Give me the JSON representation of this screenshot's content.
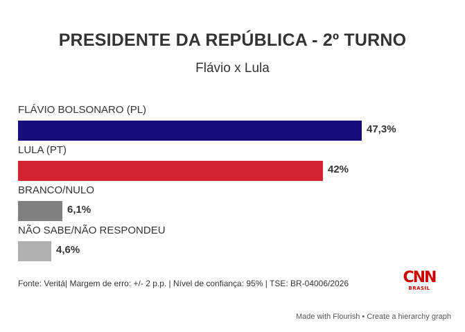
{
  "header": {
    "title": "PRESIDENTE DA REPÚBLICA - 2º TURNO",
    "subtitle": "Flávio x Lula"
  },
  "chart_data": {
    "type": "bar",
    "orientation": "horizontal",
    "title": "PRESIDENTE DA REPÚBLICA - 2º TURNO",
    "subtitle": "Flávio x Lula",
    "categories": [
      "FLÁVIO BOLSONARO (PL)",
      "LULA (PT)",
      "BRANCO/NULO",
      "NÃO SABE/NÃO RESPONDEU"
    ],
    "values": [
      47.3,
      42,
      6.1,
      4.6
    ],
    "value_labels": [
      "47,3%",
      "42%",
      "6,1%",
      "4,6%"
    ],
    "colors": [
      "#140d7a",
      "#d0242f",
      "#808080",
      "#b0b0b0"
    ],
    "xlim": [
      0,
      47.3
    ],
    "grid": false,
    "legend": "none"
  },
  "footer": {
    "source": "Fonte: Veritá| Margem de erro: +/- 2 p.p. | Nível de confiança: 95% | TSE: BR-04006/2026"
  },
  "logo": {
    "name": "CNN",
    "sub": "BRASIL",
    "color": "#cc0000"
  },
  "credit": {
    "made_with": "Made with Flourish",
    "separator": "•",
    "link": "Create a hierarchy graph"
  }
}
